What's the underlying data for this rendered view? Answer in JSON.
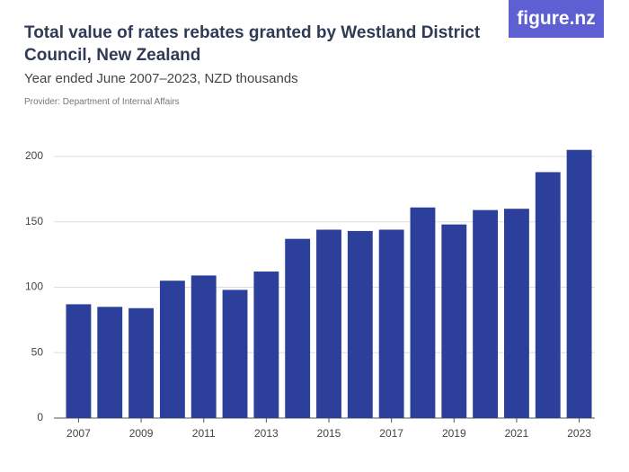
{
  "chart_data": {
    "type": "bar",
    "title": "Total value of rates rebates granted by Westland District Council, New Zealand",
    "subtitle": "Year ended June 2007–2023, NZD thousands",
    "source": "Provider: Department of Internal Affairs",
    "logo": "figure.nz",
    "categories": [
      "2007",
      null,
      "2009",
      null,
      "2011",
      null,
      "2013",
      null,
      "2015",
      null,
      "2017",
      null,
      "2019",
      null,
      "2021",
      null,
      "2023"
    ],
    "values": [
      87,
      85,
      84,
      105,
      109,
      98,
      112,
      137,
      144,
      143,
      144,
      161,
      148,
      159,
      160,
      188,
      205
    ],
    "color": "#2b3f9b",
    "ylim": [
      0,
      200
    ],
    "yticks": [
      0,
      50,
      100,
      150,
      200
    ],
    "grid": true
  }
}
